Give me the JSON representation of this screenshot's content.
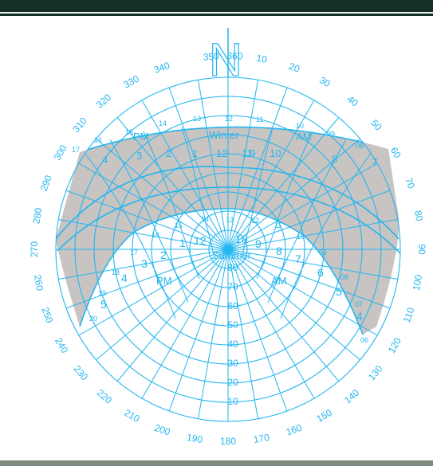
{
  "colors": {
    "line": "#22b6f0",
    "fill": "#c8c4c2",
    "background": "#ffffff",
    "top_bar": "#123028",
    "bottom_bar": "#7e8a80"
  },
  "north_label": "N",
  "azimuth_labels": [
    "350",
    "360",
    "10",
    "20",
    "30",
    "40",
    "50",
    "60",
    "70",
    "80",
    "90",
    "100",
    "110",
    "120",
    "130",
    "140",
    "150",
    "160",
    "170",
    "180",
    "190",
    "200",
    "210",
    "220",
    "230",
    "240",
    "250",
    "260",
    "270",
    "280",
    "290",
    "300",
    "310",
    "320",
    "330",
    "340"
  ],
  "altitude_labels": [
    "80",
    "70",
    "60",
    "50",
    "40",
    "30",
    "20",
    "10"
  ],
  "season_labels": {
    "winter": "Winter",
    "summer": "Summer"
  },
  "winter_path": {
    "am": "AM",
    "pm": "PM",
    "hour_labels": [
      "9",
      "10",
      "11",
      "12",
      "1",
      "2",
      "3",
      "4"
    ],
    "clock_labels": [
      "08",
      "09",
      "10",
      "11",
      "12",
      "13",
      "14",
      "15",
      "16",
      "17"
    ],
    "am_side_hours": [
      "7",
      "8"
    ]
  },
  "summer_path": {
    "am": "AM",
    "pm": "PM",
    "hour_labels": [
      "10",
      "9",
      "8",
      "7",
      "6",
      "5",
      "4",
      "12",
      "1",
      "2",
      "3",
      "4",
      "5"
    ],
    "clock_labels": [
      "13",
      "12",
      "11",
      "10",
      "09",
      "08",
      "07",
      "06",
      "14",
      "15",
      "16",
      "17",
      "18",
      "19",
      "20"
    ]
  }
}
